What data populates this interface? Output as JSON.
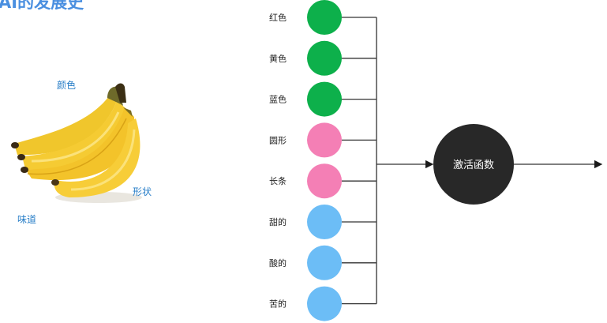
{
  "title": "AI的发展史",
  "banana_labels": {
    "color": "颜色",
    "shape": "形状",
    "taste": "味道"
  },
  "features": [
    {
      "label": "红色",
      "color": "#0db04b"
    },
    {
      "label": "黄色",
      "color": "#0db04b"
    },
    {
      "label": "蓝色",
      "color": "#0db04b"
    },
    {
      "label": "圆形",
      "color": "#f47fb5"
    },
    {
      "label": "长条",
      "color": "#f47fb5"
    },
    {
      "label": "甜的",
      "color": "#6cbdf6"
    },
    {
      "label": "酸的",
      "color": "#6cbdf6"
    },
    {
      "label": "苦的",
      "color": "#6cbdf6"
    }
  ],
  "activation": {
    "label": "激活函数",
    "color": "#282828"
  }
}
